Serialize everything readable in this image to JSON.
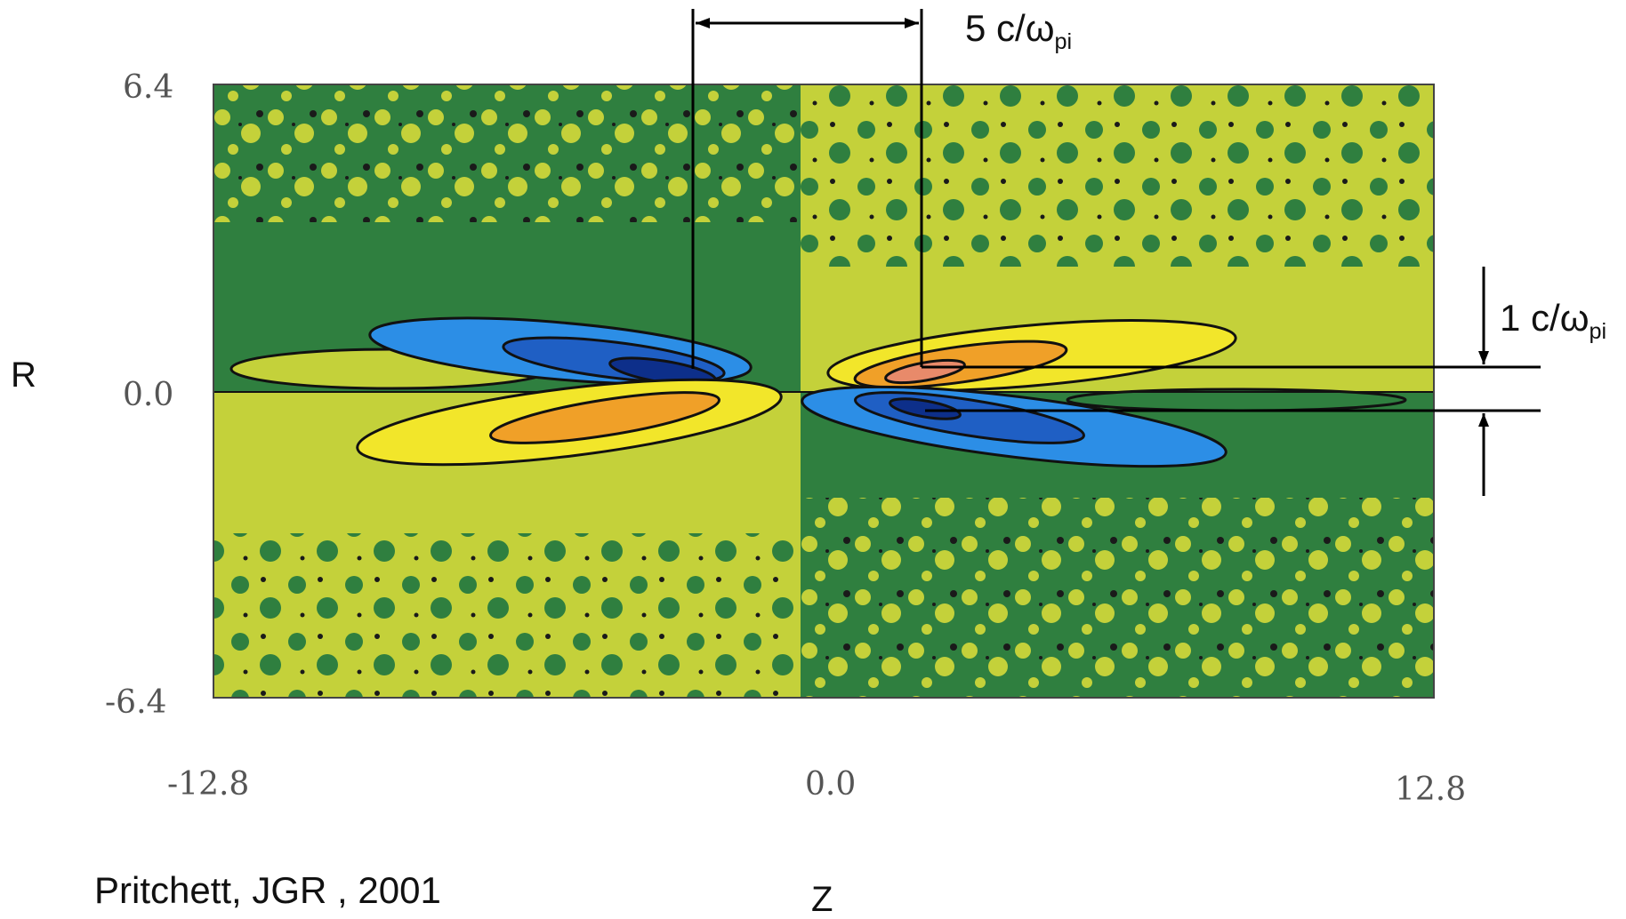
{
  "chart_data": {
    "type": "heatmap",
    "title": "",
    "xlabel": "Z",
    "ylabel": "R",
    "xlim": [
      -12.8,
      12.8
    ],
    "ylim": [
      -6.4,
      6.4
    ],
    "x_ticks": [
      "-12.8",
      "0.0",
      "12.8"
    ],
    "y_ticks": [
      "6.4",
      "0.0",
      "-6.4"
    ],
    "colors": {
      "background_low": "#2f7f3f",
      "background_high": "#c4d13a",
      "positive_1": "#f2e62a",
      "positive_2": "#f0a028",
      "positive_3": "#e88a6a",
      "negative_1": "#2c8ee6",
      "negative_2": "#1f5fc4",
      "negative_3": "#0d2f8a"
    },
    "lobes": [
      {
        "sign": "negative",
        "quadrant": "upper-left",
        "peak": {
          "z": -2.6,
          "r": 0.2
        }
      },
      {
        "sign": "positive",
        "quadrant": "lower-left",
        "peak": {
          "z": -3.5,
          "r": -0.5
        }
      },
      {
        "sign": "positive",
        "quadrant": "upper-right",
        "peak": {
          "z": 2.3,
          "r": 0.4
        }
      },
      {
        "sign": "negative",
        "quadrant": "lower-right",
        "peak": {
          "z": 2.6,
          "r": -0.3
        }
      }
    ],
    "annotations": [
      {
        "text": "5 c/ω",
        "sub": "pi",
        "kind": "horizontal-dimension",
        "from_z": -2.6,
        "to_z": 2.3
      },
      {
        "text": "1 c/ω",
        "sub": "pi",
        "kind": "vertical-dimension",
        "from_r": -0.3,
        "to_r": 0.6
      }
    ],
    "citation": "Pritchett, JGR , 2001"
  }
}
